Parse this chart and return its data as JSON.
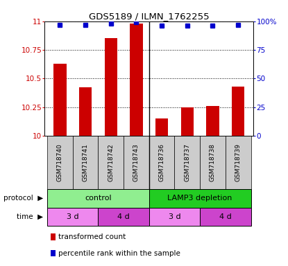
{
  "title": "GDS5189 / ILMN_1762255",
  "samples": [
    "GSM718740",
    "GSM718741",
    "GSM718742",
    "GSM718743",
    "GSM718736",
    "GSM718737",
    "GSM718738",
    "GSM718739"
  ],
  "red_values": [
    10.63,
    10.42,
    10.85,
    10.98,
    10.15,
    10.25,
    10.26,
    10.43
  ],
  "blue_values": [
    97,
    97,
    98,
    99,
    96,
    96,
    96,
    97
  ],
  "ylim_left": [
    10.0,
    11.0
  ],
  "ylim_right": [
    0,
    100
  ],
  "yticks_left": [
    10.0,
    10.25,
    10.5,
    10.75,
    11.0
  ],
  "yticks_right": [
    0,
    25,
    50,
    75,
    100
  ],
  "protocol_labels": [
    "control",
    "LAMP3 depletion"
  ],
  "protocol_colors": [
    "#90EE90",
    "#22CC22"
  ],
  "time_labels": [
    "3 d",
    "4 d",
    "3 d",
    "4 d"
  ],
  "time_colors": [
    "#EE88EE",
    "#CC44CC",
    "#EE88EE",
    "#CC44CC"
  ],
  "bar_color": "#CC0000",
  "dot_color": "#0000CC",
  "tick_label_color_left": "#CC0000",
  "tick_label_color_right": "#0000CC",
  "sample_bg_color": "#CCCCCC",
  "label_arrow_color": "#999999"
}
